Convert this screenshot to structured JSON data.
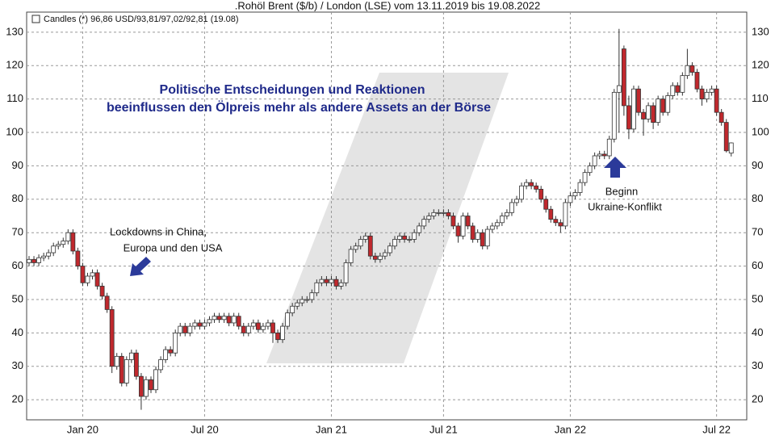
{
  "chart_data": {
    "type": "candlestick",
    "title": ".Rohöl Brent ($/b) / London (LSE) vom 13.11.2019 bis 19.08.2022",
    "legend_label": "Candles (*) 96,86 USD/93,81/97,02/92,81 (19.08)",
    "message": [
      "Politische Entscheidungen und Reaktionen",
      "beeinflussen den Ölpreis mehr als andere Assets an der Börse"
    ],
    "annotation_lockdown": [
      "Lockdowns in China,",
      "Europa und den USA"
    ],
    "annotation_ukraine": [
      "Beginn",
      "Ukraine-Konflikt"
    ],
    "up_color": "#ffffff",
    "down_color": "#c0282d",
    "grid": true,
    "ylim": [
      14,
      136
    ],
    "yticks": [
      20,
      30,
      40,
      50,
      60,
      70,
      80,
      90,
      100,
      110,
      120,
      130
    ],
    "categories": [
      null,
      null,
      null,
      null,
      null,
      null,
      null,
      null,
      null,
      null,
      null,
      "Jan 20",
      null,
      null,
      null,
      null,
      null,
      null,
      null,
      null,
      null,
      null,
      null,
      null,
      null,
      null,
      null,
      null,
      null,
      null,
      null,
      null,
      null,
      null,
      null,
      null,
      "Jul 20",
      null,
      null,
      null,
      null,
      null,
      null,
      null,
      null,
      null,
      null,
      null,
      null,
      null,
      null,
      null,
      null,
      null,
      null,
      null,
      null,
      null,
      null,
      null,
      null,
      null,
      "Jan 21",
      null,
      null,
      null,
      null,
      null,
      null,
      null,
      null,
      null,
      null,
      null,
      null,
      null,
      null,
      null,
      null,
      null,
      null,
      null,
      null,
      null,
      null,
      "Jul 21",
      null,
      null,
      null,
      null,
      null,
      null,
      null,
      null,
      null,
      null,
      null,
      null,
      null,
      null,
      null,
      null,
      null,
      null,
      null,
      null,
      null,
      null,
      null,
      null,
      null,
      "Jan 22",
      null,
      null,
      null,
      null,
      null,
      null,
      null,
      null,
      null,
      null,
      null,
      null,
      null,
      null,
      null,
      null,
      null,
      null,
      null,
      null,
      null,
      null,
      null,
      null,
      null,
      null,
      null,
      null,
      null,
      "Jul 22",
      null,
      null,
      null
    ],
    "open": [
      61,
      62,
      61,
      62.5,
      63,
      64,
      66,
      66.5,
      67.5,
      70,
      64.5,
      60,
      55,
      57,
      58,
      54,
      51,
      47,
      30,
      33,
      25,
      32,
      34,
      27,
      21,
      26,
      23,
      29,
      32,
      35,
      34,
      40,
      42,
      40,
      42,
      43,
      42,
      43,
      44,
      45,
      44,
      45,
      43,
      45,
      42,
      40,
      42,
      43,
      41,
      42,
      43,
      40,
      38,
      42,
      46,
      48,
      49,
      50,
      50,
      52,
      55,
      56,
      55,
      56,
      54,
      55,
      61,
      65,
      66,
      68,
      69,
      63,
      62,
      63,
      64,
      66,
      68,
      69,
      68,
      68,
      70,
      72,
      74,
      75,
      76,
      76,
      76,
      75,
      72,
      69,
      75,
      72,
      68,
      70,
      66,
      71,
      72,
      73,
      75,
      76,
      79,
      80,
      84,
      85,
      84,
      83,
      80,
      77,
      74,
      73,
      72,
      79,
      81,
      82,
      85,
      88,
      90,
      93,
      93.5,
      93,
      98,
      112,
      125,
      108,
      101,
      113,
      106,
      104,
      108,
      103,
      110,
      106,
      111,
      114,
      112,
      117,
      120,
      118,
      113,
      110,
      112,
      113,
      106,
      103,
      93.81
    ],
    "high": [
      63,
      63,
      63.5,
      64,
      65,
      67,
      67.5,
      68.5,
      71,
      71,
      65.5,
      61,
      58,
      59,
      59,
      55,
      52,
      48,
      34,
      34,
      33,
      35,
      35,
      28,
      27,
      27,
      30,
      33,
      36,
      36,
      41,
      43,
      43,
      43,
      44,
      44,
      44,
      45,
      46,
      46,
      46,
      46,
      46,
      46,
      43,
      43,
      44,
      44,
      43,
      44,
      44,
      41,
      43,
      47,
      49,
      50,
      51,
      51,
      53,
      56,
      57,
      57,
      57,
      57,
      56,
      62,
      66,
      67,
      69,
      70,
      70,
      64,
      64,
      65,
      67,
      69,
      70,
      70,
      69,
      71,
      73,
      75,
      76,
      77,
      77,
      77,
      77,
      76,
      73,
      76,
      76,
      73,
      71,
      71,
      72,
      73,
      74,
      76,
      77,
      80,
      81,
      85,
      86,
      86,
      85,
      84,
      81,
      78,
      75,
      74,
      80,
      82,
      83,
      86,
      89,
      91,
      94,
      94.5,
      94.5,
      99,
      113,
      131,
      126,
      111,
      114,
      114,
      107,
      109,
      109,
      111,
      111,
      112,
      115,
      115,
      118,
      125,
      121,
      119,
      114,
      113,
      114,
      114,
      107,
      104,
      97.02
    ],
    "low": [
      60,
      60,
      60,
      61.5,
      62,
      63,
      65,
      65.5,
      66.5,
      63.5,
      59,
      54,
      54,
      56,
      53,
      50,
      46,
      28,
      29,
      24,
      24,
      31,
      26,
      17,
      20,
      22,
      22,
      28,
      31,
      33,
      33,
      39,
      39,
      39,
      41,
      41,
      41,
      42,
      43,
      43,
      43,
      42,
      42,
      41,
      39,
      39,
      41,
      40,
      40,
      41,
      37,
      37,
      37,
      41,
      45,
      47,
      48,
      49,
      49,
      51,
      54,
      54,
      54,
      53,
      53,
      54,
      60,
      64,
      65,
      67,
      62,
      61,
      61,
      62,
      63,
      65,
      67,
      67,
      67,
      67,
      69,
      71,
      73,
      74,
      75,
      75,
      74,
      71,
      67,
      68,
      71,
      67,
      67,
      65,
      65,
      70,
      71,
      72,
      74,
      75,
      78,
      79,
      83,
      83,
      82,
      79,
      76,
      73,
      72,
      70,
      71,
      78,
      80,
      81,
      84,
      87,
      89,
      92,
      92,
      92,
      97,
      100,
      105,
      98,
      100,
      105,
      99,
      103,
      101,
      102,
      105,
      105,
      110,
      111,
      111,
      116,
      117,
      112,
      108,
      109,
      111,
      105,
      102,
      94,
      92.81
    ],
    "close": [
      62,
      61,
      62.5,
      63,
      64,
      66,
      66.5,
      67.5,
      70,
      64.5,
      60,
      55,
      57,
      58,
      54,
      51,
      47,
      30,
      33,
      25,
      32,
      34,
      27,
      21,
      26,
      23,
      29,
      32,
      35,
      34,
      40,
      42,
      40,
      42,
      43,
      42,
      43,
      44,
      45,
      44,
      45,
      43,
      45,
      42,
      40,
      42,
      43,
      41,
      42,
      43,
      40,
      38,
      42,
      46,
      48,
      49,
      50,
      50,
      52,
      55,
      56,
      55,
      56,
      54,
      55,
      61,
      65,
      66,
      68,
      69,
      63,
      62,
      63,
      64,
      66,
      68,
      69,
      68,
      68,
      70,
      72,
      74,
      75,
      76,
      76,
      76,
      75,
      72,
      69,
      75,
      72,
      68,
      70,
      66,
      71,
      72,
      73,
      75,
      76,
      79,
      80,
      84,
      85,
      84,
      83,
      80,
      77,
      74,
      73,
      72,
      79,
      81,
      82,
      85,
      88,
      90,
      93,
      93.5,
      93,
      98,
      112,
      114,
      108,
      101,
      113,
      106,
      104,
      108,
      103,
      110,
      106,
      111,
      114,
      112,
      117,
      120,
      118,
      113,
      110,
      112,
      113,
      106,
      103,
      94.5,
      96.86
    ]
  }
}
